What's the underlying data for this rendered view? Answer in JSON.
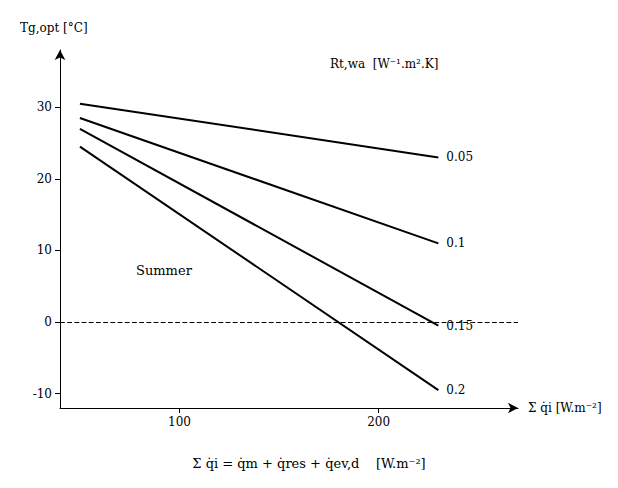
{
  "chart_data": {
    "type": "line",
    "x_label": "Σ q̇i [W.m⁻²]",
    "y_label": "Tg,opt [°C]",
    "color": "black",
    "series": [
      {
        "name": "0.05",
        "x": [
          50,
          230
        ],
        "values": [
          30.5,
          23.0
        ]
      },
      {
        "name": "0.1",
        "x": [
          50,
          230
        ],
        "values": [
          28.5,
          11.0
        ]
      },
      {
        "name": "0.15",
        "x": [
          50,
          230
        ],
        "values": [
          27.0,
          -0.5
        ]
      },
      {
        "name": "0.2",
        "x": [
          50,
          230
        ],
        "values": [
          24.5,
          -9.5
        ]
      }
    ],
    "reference_lines": [
      {
        "y": 0,
        "line_style": "dashed",
        "color": "black"
      }
    ],
    "annotations": [
      "Summer",
      "Rt,wa  [W⁻¹.m².K]",
      "Σ q̇i = q̇m + q̇res + q̇ev,d    [W.m⁻²]"
    ],
    "xlim": [
      40,
      270
    ],
    "ylim": [
      -12,
      38
    ],
    "xticks": [
      100,
      200
    ],
    "yticks": [
      -10,
      0,
      10,
      20,
      30
    ],
    "grid": false,
    "legend": false
  }
}
